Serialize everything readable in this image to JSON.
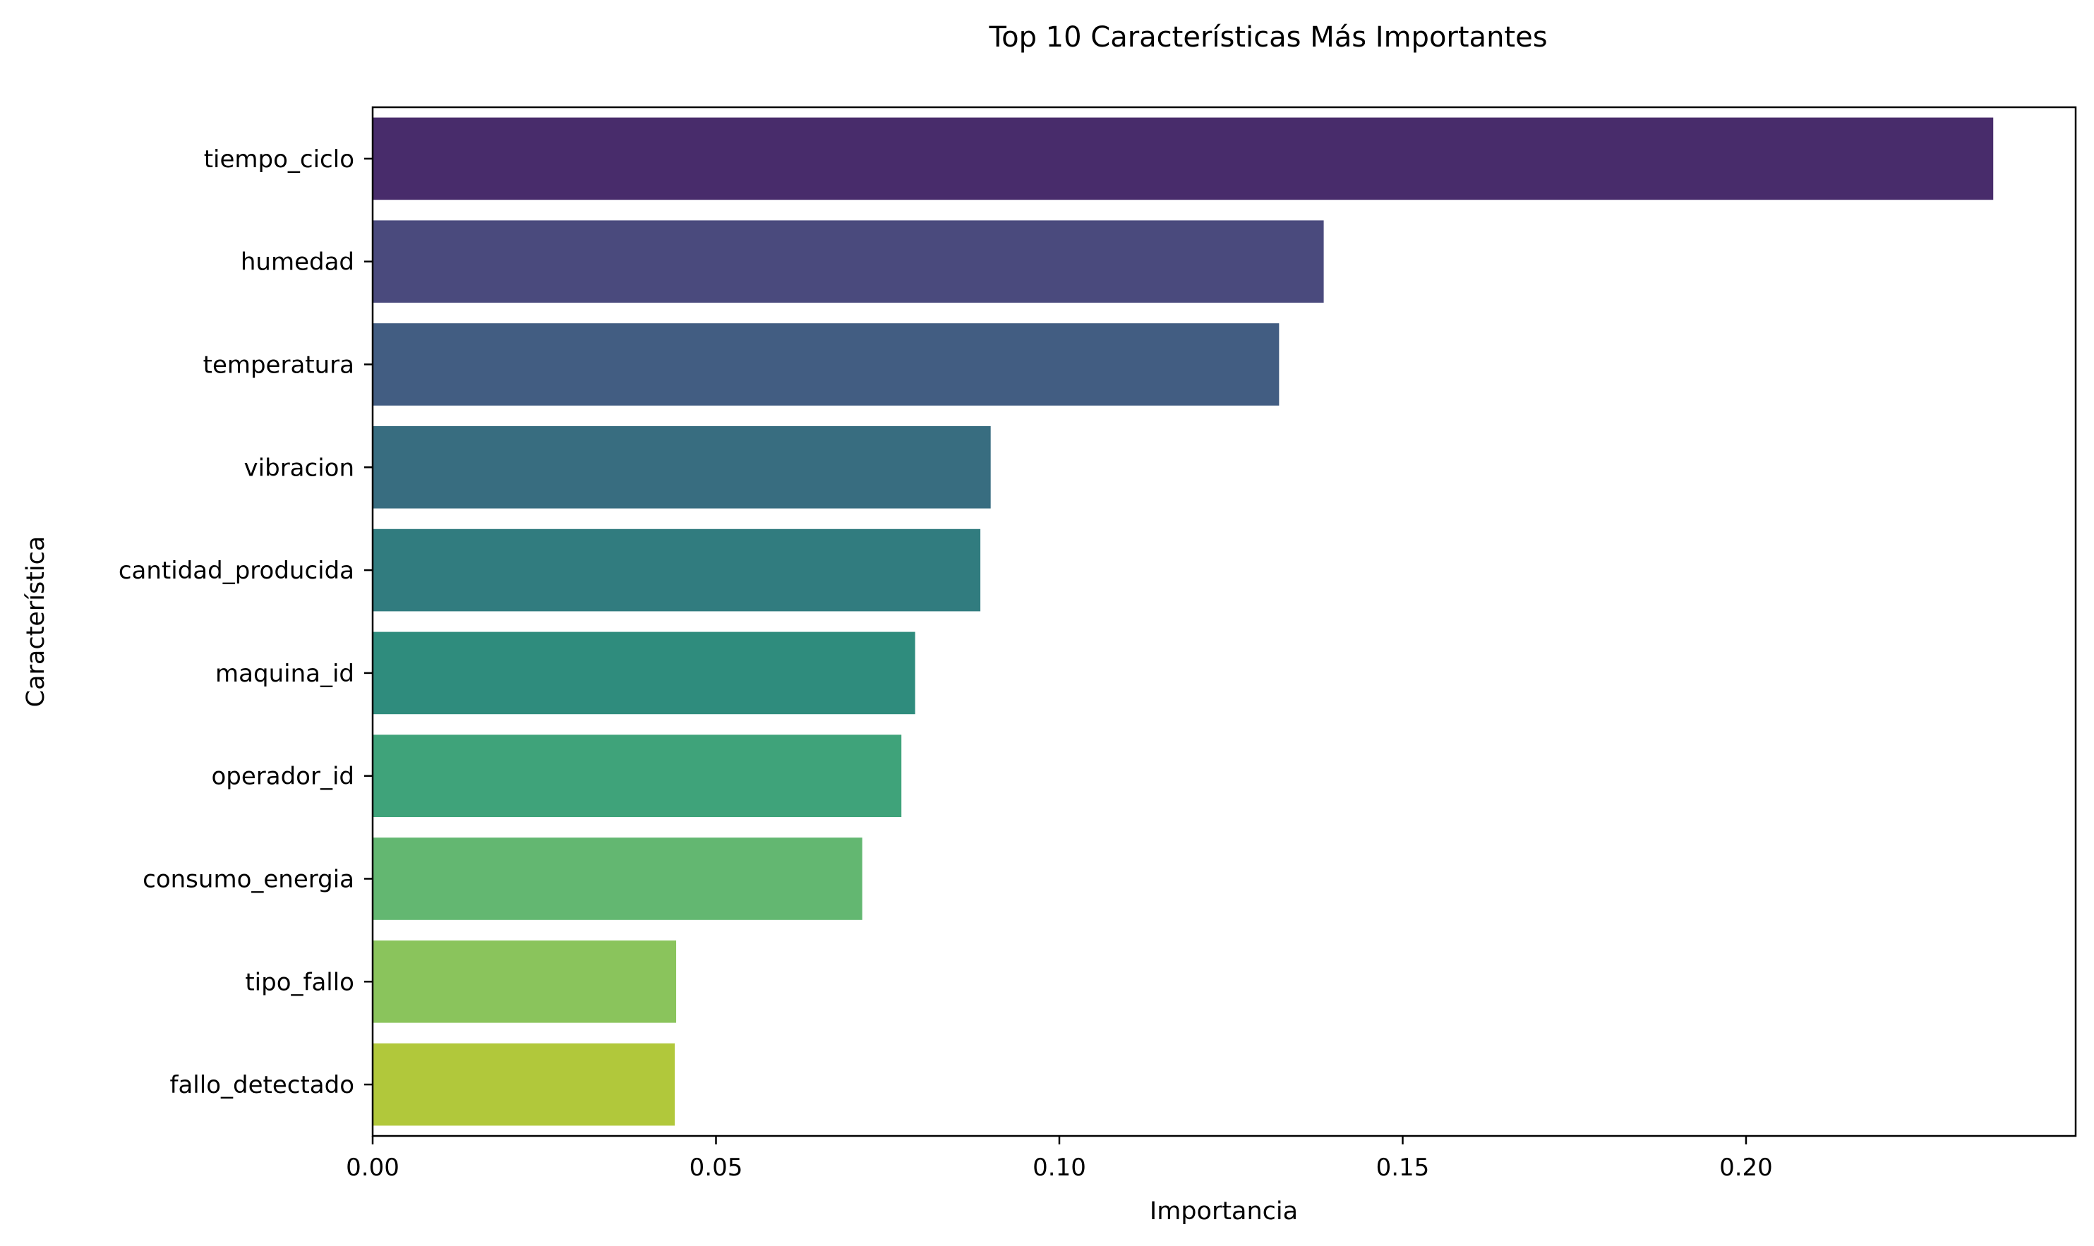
{
  "chart_data": {
    "type": "bar",
    "orientation": "horizontal",
    "title": "Top 10 Características Más Importantes",
    "xlabel": "Importancia",
    "ylabel": "Característica",
    "xlim": [
      0,
      0.248
    ],
    "xticks": [
      0.0,
      0.05,
      0.1,
      0.15,
      0.2
    ],
    "xtick_labels": [
      "0.00",
      "0.05",
      "0.10",
      "0.15",
      "0.20"
    ],
    "grid": false,
    "categories": [
      "tiempo_ciclo",
      "humedad",
      "temperatura",
      "vibracion",
      "cantidad_producida",
      "maquina_id",
      "operador_id",
      "consumo_energia",
      "tipo_fallo",
      "fallo_detectado"
    ],
    "values": [
      0.236,
      0.1385,
      0.132,
      0.09,
      0.0885,
      0.079,
      0.077,
      0.0713,
      0.0442,
      0.044
    ],
    "colors": [
      "#482c6b",
      "#4a4a7d",
      "#425d82",
      "#386d80",
      "#317c7f",
      "#2f8c7d",
      "#3fa37a",
      "#63b771",
      "#8ac45c",
      "#b1c83b"
    ]
  }
}
